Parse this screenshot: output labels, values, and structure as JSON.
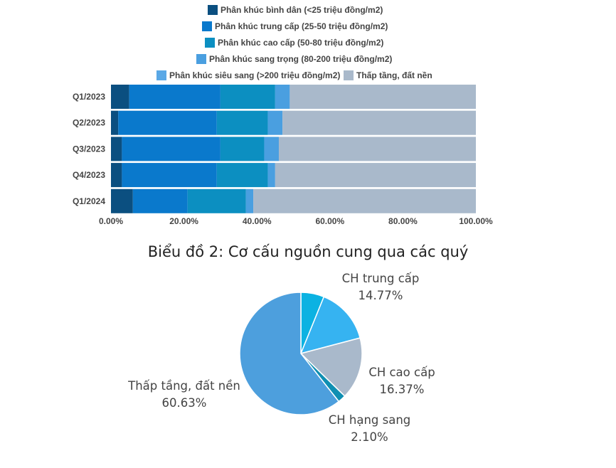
{
  "chart_data": [
    {
      "type": "bar",
      "orientation": "horizontal",
      "stacked": true,
      "title": "",
      "categories": [
        "Q1/2023",
        "Q2/2023",
        "Q3/2023",
        "Q4/2023",
        "Q1/2024"
      ],
      "series": [
        {
          "name": "Phân khúc bình dân (<25 triệu đồng/m2)",
          "color": "#0b4f80",
          "values": [
            5,
            2,
            3,
            3,
            6
          ]
        },
        {
          "name": "Phân khúc trung cấp (25-50 triệu đồng/m2)",
          "color": "#0a79cc",
          "values": [
            25,
            27,
            27,
            26,
            15
          ]
        },
        {
          "name": "Phân khúc cao cấp (50-80 triệu đồng/m2)",
          "color": "#0c8fc1",
          "values": [
            15,
            14,
            12,
            14,
            16
          ]
        },
        {
          "name": "Phân khúc sang trọng (80-200 triệu đồng/m2)",
          "color": "#4a9fe0",
          "values": [
            4,
            4,
            4,
            2,
            2
          ]
        },
        {
          "name": "Phân khúc siêu sang (>200 triệu đồng/m2)",
          "color": "#5aa8e6",
          "values": [
            0,
            0,
            0,
            0,
            0
          ]
        },
        {
          "name": "Thấp tầng, đất nền",
          "color": "#a9b9cb",
          "values": [
            51,
            53,
            54,
            55,
            61
          ]
        }
      ],
      "x_ticks": [
        "0.00%",
        "20.00%",
        "40.00%",
        "60.00%",
        "80.00%",
        "100.00%"
      ],
      "xlim": [
        0,
        100
      ],
      "legend_position": "top",
      "grid": false
    },
    {
      "type": "pie",
      "title": "Biểu đồ 2: Cơ cấu nguồn cung qua các quý",
      "slices": [
        {
          "label": "",
          "value": 6.13,
          "percent_label": "",
          "color": "#0bb2e2"
        },
        {
          "label": "CH trung cấp",
          "value": 14.77,
          "percent_label": "14.77%",
          "color": "#36b3f1"
        },
        {
          "label": "CH cao cấp",
          "value": 16.37,
          "percent_label": "16.37%",
          "color": "#a9b9cb"
        },
        {
          "label": "CH hạng sang",
          "value": 2.1,
          "percent_label": "2.10%",
          "color": "#0f8fb2"
        },
        {
          "label": "Thấp tầng, đất nền",
          "value": 60.63,
          "percent_label": "60.63%",
          "color": "#4d9fdd"
        }
      ]
    }
  ]
}
